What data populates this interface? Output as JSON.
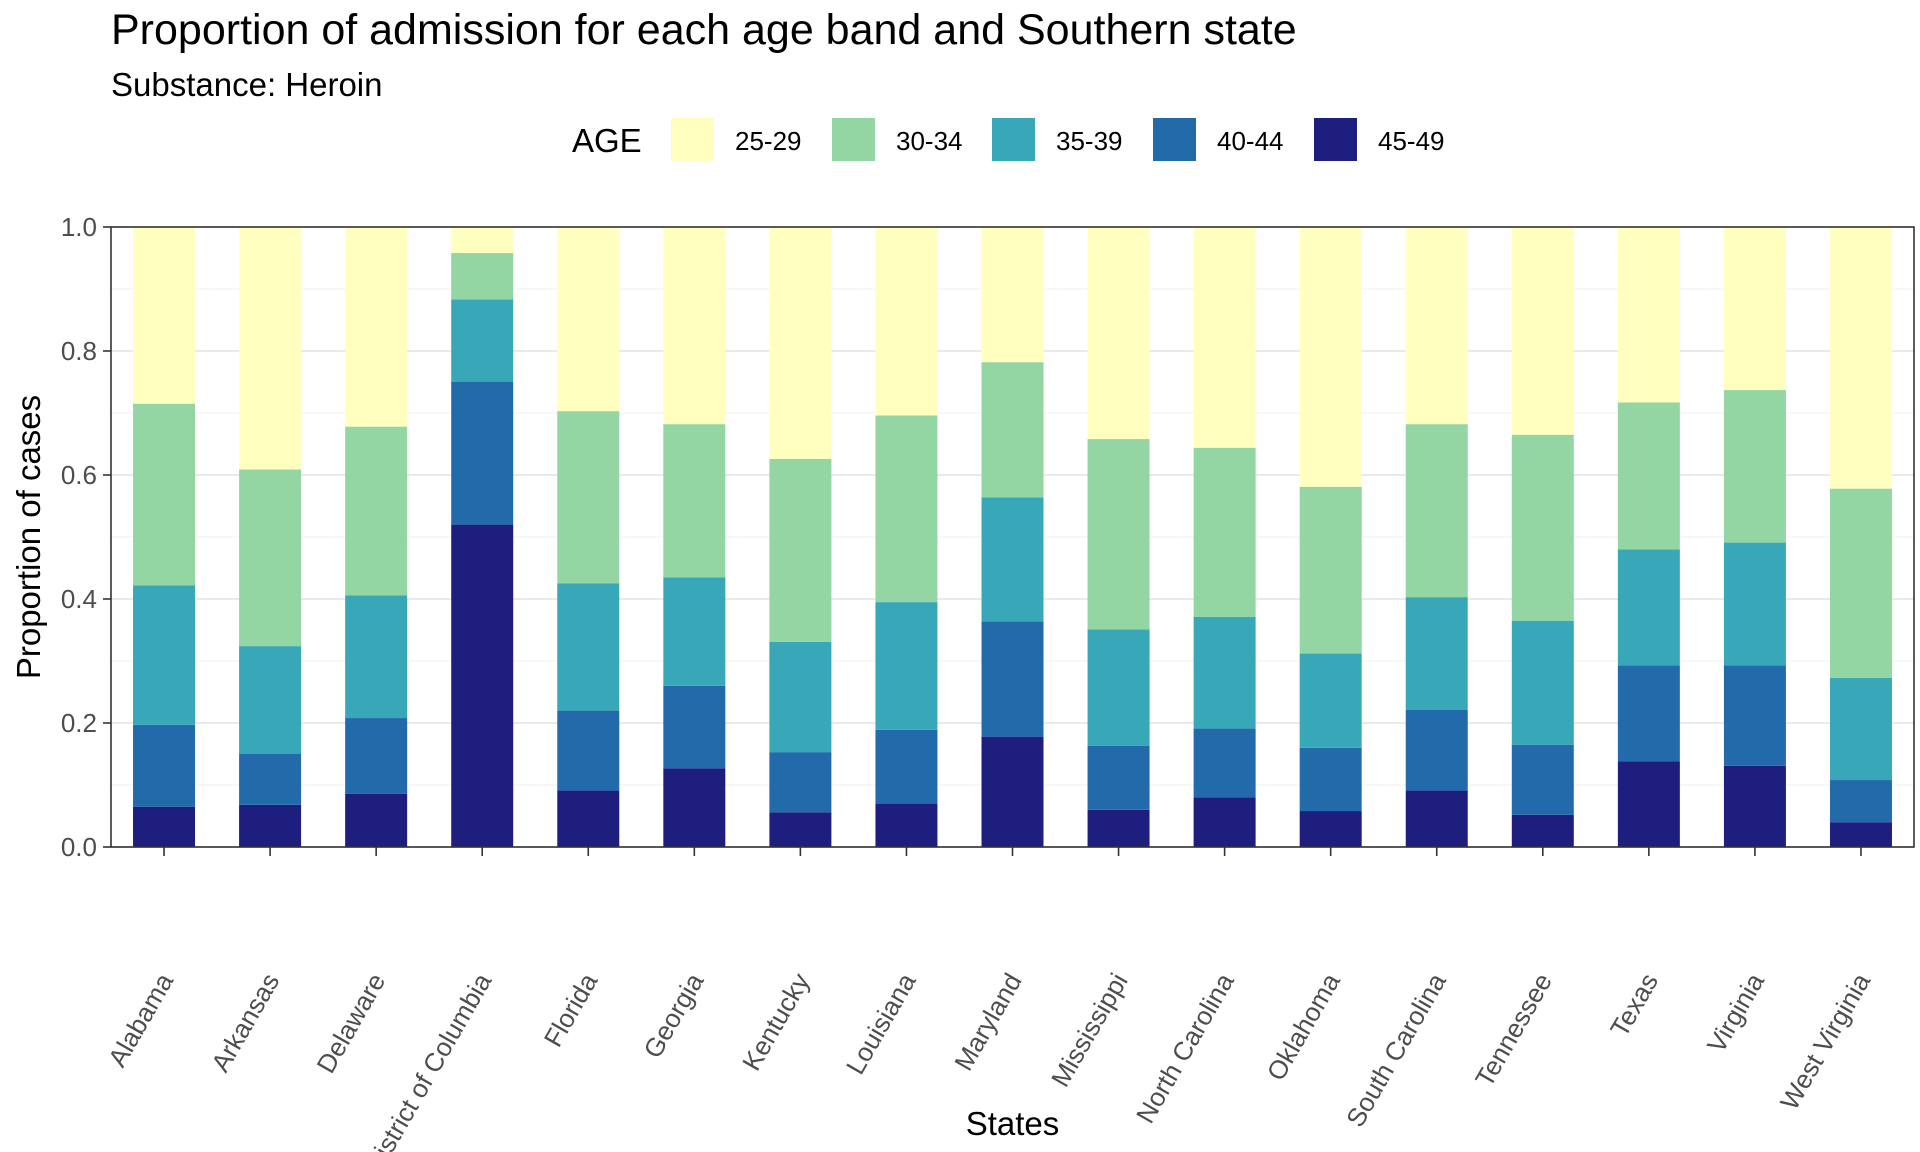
{
  "chart_data": {
    "type": "bar",
    "stacked": true,
    "title": "Proportion of admission for each age band and Southern state",
    "subtitle": "Substance: Heroin",
    "xlabel": "States",
    "ylabel": "Proportion of cases",
    "ylim": [
      0,
      1
    ],
    "yticks": [
      "0.0",
      "0.2",
      "0.4",
      "0.6",
      "0.8",
      "1.0"
    ],
    "grid": true,
    "legend": {
      "title": "AGE",
      "position": "top",
      "entries": [
        "25-29",
        "30-34",
        "35-39",
        "40-44",
        "45-49"
      ]
    },
    "categories": [
      "Alabama",
      "Arkansas",
      "Delaware",
      "District of Columbia",
      "Florida",
      "Georgia",
      "Kentucky",
      "Louisiana",
      "Maryland",
      "Mississippi",
      "North Carolina",
      "Oklahoma",
      "South Carolina",
      "Tennessee",
      "Texas",
      "Virginia",
      "West Virginia"
    ],
    "series": [
      {
        "name": "45-49",
        "color": "#1e1e7e",
        "values": [
          0.065,
          0.068,
          0.086,
          0.52,
          0.091,
          0.127,
          0.056,
          0.07,
          0.178,
          0.06,
          0.08,
          0.058,
          0.091,
          0.052,
          0.138,
          0.131,
          0.04
        ]
      },
      {
        "name": "40-44",
        "color": "#236aab",
        "values": [
          0.132,
          0.082,
          0.122,
          0.23,
          0.129,
          0.133,
          0.097,
          0.119,
          0.186,
          0.103,
          0.111,
          0.102,
          0.13,
          0.113,
          0.155,
          0.162,
          0.068
        ]
      },
      {
        "name": "35-39",
        "color": "#38a8b8",
        "values": [
          0.225,
          0.174,
          0.198,
          0.133,
          0.205,
          0.175,
          0.178,
          0.206,
          0.2,
          0.188,
          0.18,
          0.152,
          0.182,
          0.2,
          0.187,
          0.198,
          0.165
        ]
      },
      {
        "name": "30-34",
        "color": "#94d5a4",
        "values": [
          0.293,
          0.285,
          0.272,
          0.075,
          0.278,
          0.247,
          0.295,
          0.301,
          0.218,
          0.307,
          0.273,
          0.269,
          0.279,
          0.3,
          0.237,
          0.246,
          0.305
        ]
      },
      {
        "name": "25-29",
        "color": "#ffffc0",
        "values": [
          0.285,
          0.391,
          0.322,
          0.042,
          0.297,
          0.318,
          0.374,
          0.304,
          0.218,
          0.342,
          0.356,
          0.419,
          0.318,
          0.335,
          0.283,
          0.263,
          0.422
        ]
      }
    ]
  }
}
